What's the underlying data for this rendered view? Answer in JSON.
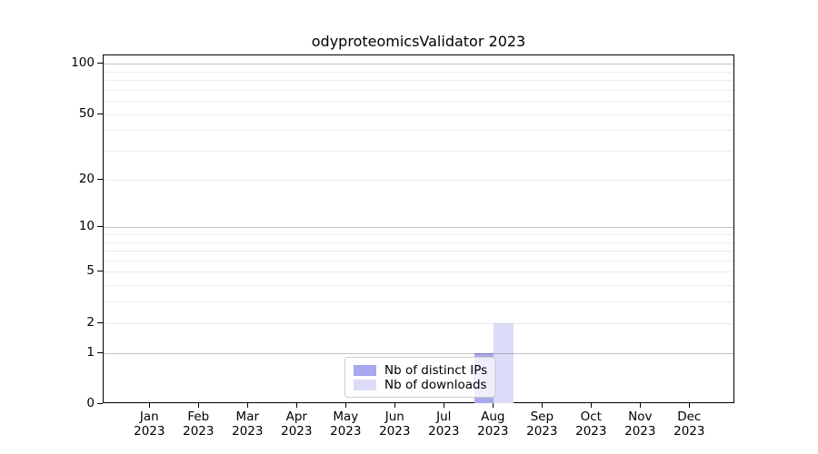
{
  "title": "odyproteomicsValidator 2023",
  "chart_data": {
    "type": "bar",
    "title": "odyproteomicsValidator 2023",
    "categories": [
      "Jan",
      "Feb",
      "Mar",
      "Apr",
      "May",
      "Jun",
      "Jul",
      "Aug",
      "Sep",
      "Oct",
      "Nov",
      "Dec"
    ],
    "category_year": "2023",
    "series": [
      {
        "name": "Nb of distinct IPs",
        "color": "#a8a8ee",
        "values": [
          0,
          0,
          0,
          0,
          0,
          0,
          0,
          1,
          0,
          0,
          0,
          0
        ]
      },
      {
        "name": "Nb of downloads",
        "color": "#dcdcf8",
        "values": [
          0,
          0,
          0,
          0,
          0,
          0,
          0,
          2,
          0,
          0,
          0,
          0
        ]
      }
    ],
    "y_axis": {
      "scale": "log10(value+1)",
      "ylim": [
        0,
        112
      ],
      "tick_values": [
        0,
        1,
        2,
        5,
        10,
        20,
        50,
        100
      ],
      "tick_labels": [
        "0",
        "1",
        "2",
        "5",
        "10",
        "20",
        "50",
        "100"
      ],
      "gridlines_major": [
        1,
        10,
        100
      ],
      "gridlines_minor": [
        2,
        3,
        4,
        5,
        6,
        7,
        8,
        9,
        20,
        30,
        40,
        50,
        60,
        70,
        80,
        90
      ]
    },
    "grid": "horizontal",
    "legend_position": "bottom-center",
    "background_color": "#ffffff",
    "axis_color": "#000000"
  }
}
